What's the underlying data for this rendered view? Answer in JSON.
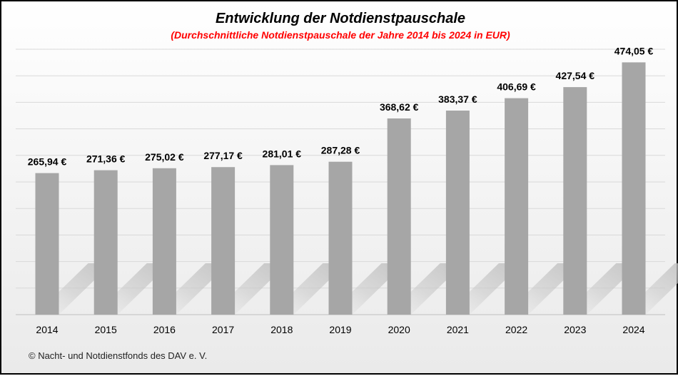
{
  "chart_data": {
    "type": "bar",
    "title": "Entwicklung  der Notdienstpauschale",
    "subtitle": "(Durchschnittliche Notdienstpauschale der Jahre 2014 bis 2024 in EUR)",
    "categories": [
      "2014",
      "2015",
      "2016",
      "2017",
      "2018",
      "2019",
      "2020",
      "2021",
      "2022",
      "2023",
      "2024"
    ],
    "values": [
      265.94,
      271.36,
      275.02,
      277.17,
      281.01,
      287.28,
      368.62,
      383.37,
      406.69,
      427.54,
      474.05
    ],
    "data_labels": [
      "265,94 €",
      "271,36 €",
      "275,02 €",
      "277,17 €",
      "281,01 €",
      "287,28 €",
      "368,62 €",
      "383,37 €",
      "406,69 €",
      "427,54 €",
      "474,05 €"
    ],
    "ylim": [
      0,
      500
    ],
    "grid": true,
    "bar_color": "#a6a6a6",
    "title_color": "#000000",
    "subtitle_color": "#ff0000",
    "xlabel": "",
    "ylabel": ""
  },
  "footer": {
    "credit": "© Nacht- und Notdienstfonds  des DAV e. V."
  }
}
